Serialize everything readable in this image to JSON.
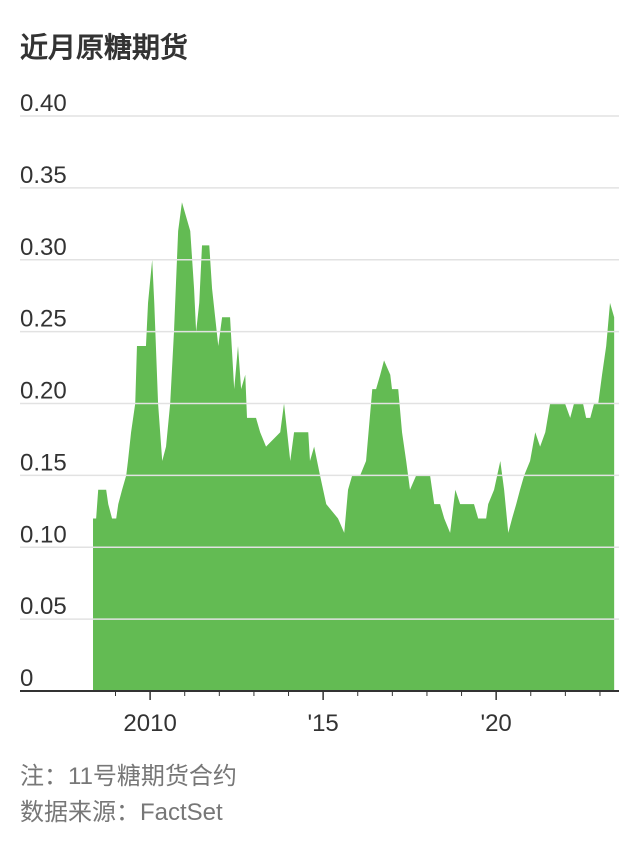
{
  "chart_data": {
    "type": "area",
    "title": "近月原糖期货",
    "note": "注：11号糖期货合约",
    "source": "数据来源：FactSet",
    "color": "#63bb53",
    "grid": true,
    "x": [
      2008.35,
      2008.44,
      2008.5,
      2008.73,
      2008.79,
      2008.9,
      2009.02,
      2009.08,
      2009.19,
      2009.31,
      2009.36,
      2009.45,
      2009.57,
      2009.62,
      2009.88,
      2009.94,
      2010.06,
      2010.12,
      2010.23,
      2010.35,
      2010.46,
      2010.58,
      2010.69,
      2010.81,
      2010.92,
      2011.16,
      2011.27,
      2011.33,
      2011.42,
      2011.5,
      2011.71,
      2011.79,
      2011.88,
      2011.97,
      2012.08,
      2012.31,
      2012.43,
      2012.54,
      2012.63,
      2012.75,
      2012.8,
      2013.06,
      2013.18,
      2013.35,
      2013.76,
      2013.87,
      2014.05,
      2014.16,
      2014.57,
      2014.62,
      2014.74,
      2014.91,
      2015.09,
      2015.43,
      2015.61,
      2015.72,
      2015.84,
      2016.07,
      2016.24,
      2016.42,
      2016.53,
      2016.65,
      2016.76,
      2016.94,
      2016.99,
      2017.17,
      2017.28,
      2017.4,
      2017.51,
      2017.69,
      2018.09,
      2018.21,
      2018.38,
      2018.5,
      2018.67,
      2018.82,
      2018.96,
      2019.36,
      2019.48,
      2019.71,
      2019.77,
      2019.94,
      2020.12,
      2020.23,
      2020.35,
      2020.46,
      2020.58,
      2020.69,
      2020.81,
      2020.98,
      2021.13,
      2021.27,
      2021.42,
      2021.56,
      2021.99,
      2022.14,
      2022.25,
      2022.51,
      2022.6,
      2022.72,
      2022.83,
      2022.95,
      2023.06,
      2023.18,
      2023.29,
      2023.41
    ],
    "values": [
      0.12,
      0.12,
      0.14,
      0.14,
      0.13,
      0.12,
      0.12,
      0.13,
      0.14,
      0.15,
      0.16,
      0.18,
      0.2,
      0.24,
      0.24,
      0.27,
      0.3,
      0.27,
      0.2,
      0.16,
      0.17,
      0.2,
      0.25,
      0.32,
      0.34,
      0.32,
      0.28,
      0.25,
      0.27,
      0.31,
      0.31,
      0.28,
      0.26,
      0.24,
      0.26,
      0.26,
      0.21,
      0.24,
      0.21,
      0.22,
      0.19,
      0.19,
      0.18,
      0.17,
      0.18,
      0.2,
      0.16,
      0.18,
      0.18,
      0.16,
      0.17,
      0.15,
      0.13,
      0.12,
      0.11,
      0.14,
      0.15,
      0.15,
      0.16,
      0.21,
      0.21,
      0.22,
      0.23,
      0.22,
      0.21,
      0.21,
      0.18,
      0.16,
      0.14,
      0.15,
      0.15,
      0.13,
      0.13,
      0.12,
      0.11,
      0.14,
      0.13,
      0.13,
      0.12,
      0.12,
      0.13,
      0.14,
      0.16,
      0.14,
      0.11,
      0.12,
      0.13,
      0.14,
      0.15,
      0.16,
      0.18,
      0.17,
      0.18,
      0.2,
      0.2,
      0.19,
      0.2,
      0.2,
      0.19,
      0.19,
      0.2,
      0.2,
      0.22,
      0.24,
      0.27,
      0.26
    ],
    "xlim": [
      2006.24,
      2023.55
    ],
    "xticks": [
      {
        "value": 2010,
        "label": "2010"
      },
      {
        "value": 2015,
        "label": "'15"
      },
      {
        "value": 2020,
        "label": "'20"
      }
    ],
    "xminor_ticks": [
      2009,
      2011,
      2012,
      2013,
      2014,
      2016,
      2017,
      2018,
      2019,
      2021,
      2022,
      2023
    ],
    "ylim": [
      0,
      0.4
    ],
    "yticks": [
      0,
      0.05,
      {
        "value": 0.1,
        "label": "0.10"
      },
      0.15,
      {
        "value": 0.2,
        "label": "0.20"
      },
      0.25,
      {
        "value": 0.3,
        "label": "0.30"
      },
      0.35,
      {
        "value": 0.4,
        "label": "0.40"
      }
    ]
  }
}
